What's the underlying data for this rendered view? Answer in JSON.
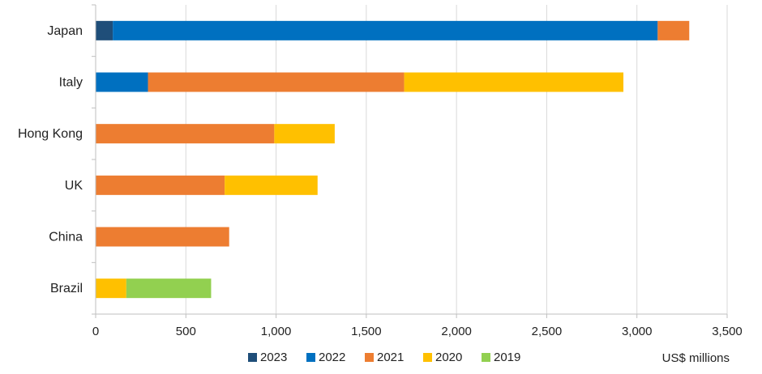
{
  "chart_data": {
    "type": "bar",
    "orientation": "horizontal",
    "stacked": true,
    "categories": [
      "Japan",
      "Italy",
      "Hong Kong",
      "UK",
      "China",
      "Brazil"
    ],
    "series": [
      {
        "name": "2023",
        "color": "#1f4e79",
        "values": [
          95,
          0,
          0,
          0,
          0,
          0
        ]
      },
      {
        "name": "2022",
        "color": "#0070c0",
        "values": [
          3020,
          290,
          0,
          0,
          0,
          0
        ]
      },
      {
        "name": "2021",
        "color": "#ed7d31",
        "values": [
          175,
          1420,
          990,
          715,
          740,
          0
        ]
      },
      {
        "name": "2020",
        "color": "#ffc000",
        "values": [
          0,
          1215,
          335,
          515,
          0,
          170
        ]
      },
      {
        "name": "2019",
        "color": "#92d050",
        "values": [
          0,
          0,
          0,
          0,
          0,
          470
        ]
      }
    ],
    "xlim": [
      0,
      3500
    ],
    "x_ticks": [
      "0",
      "500",
      "1,000",
      "1,500",
      "2,000",
      "2,500",
      "3,000",
      "3,500"
    ],
    "x_tick_values": [
      0,
      500,
      1000,
      1500,
      2000,
      2500,
      3000,
      3500
    ],
    "xlabel": "US$ millions",
    "grid": "vertical",
    "legend_position": "bottom"
  }
}
